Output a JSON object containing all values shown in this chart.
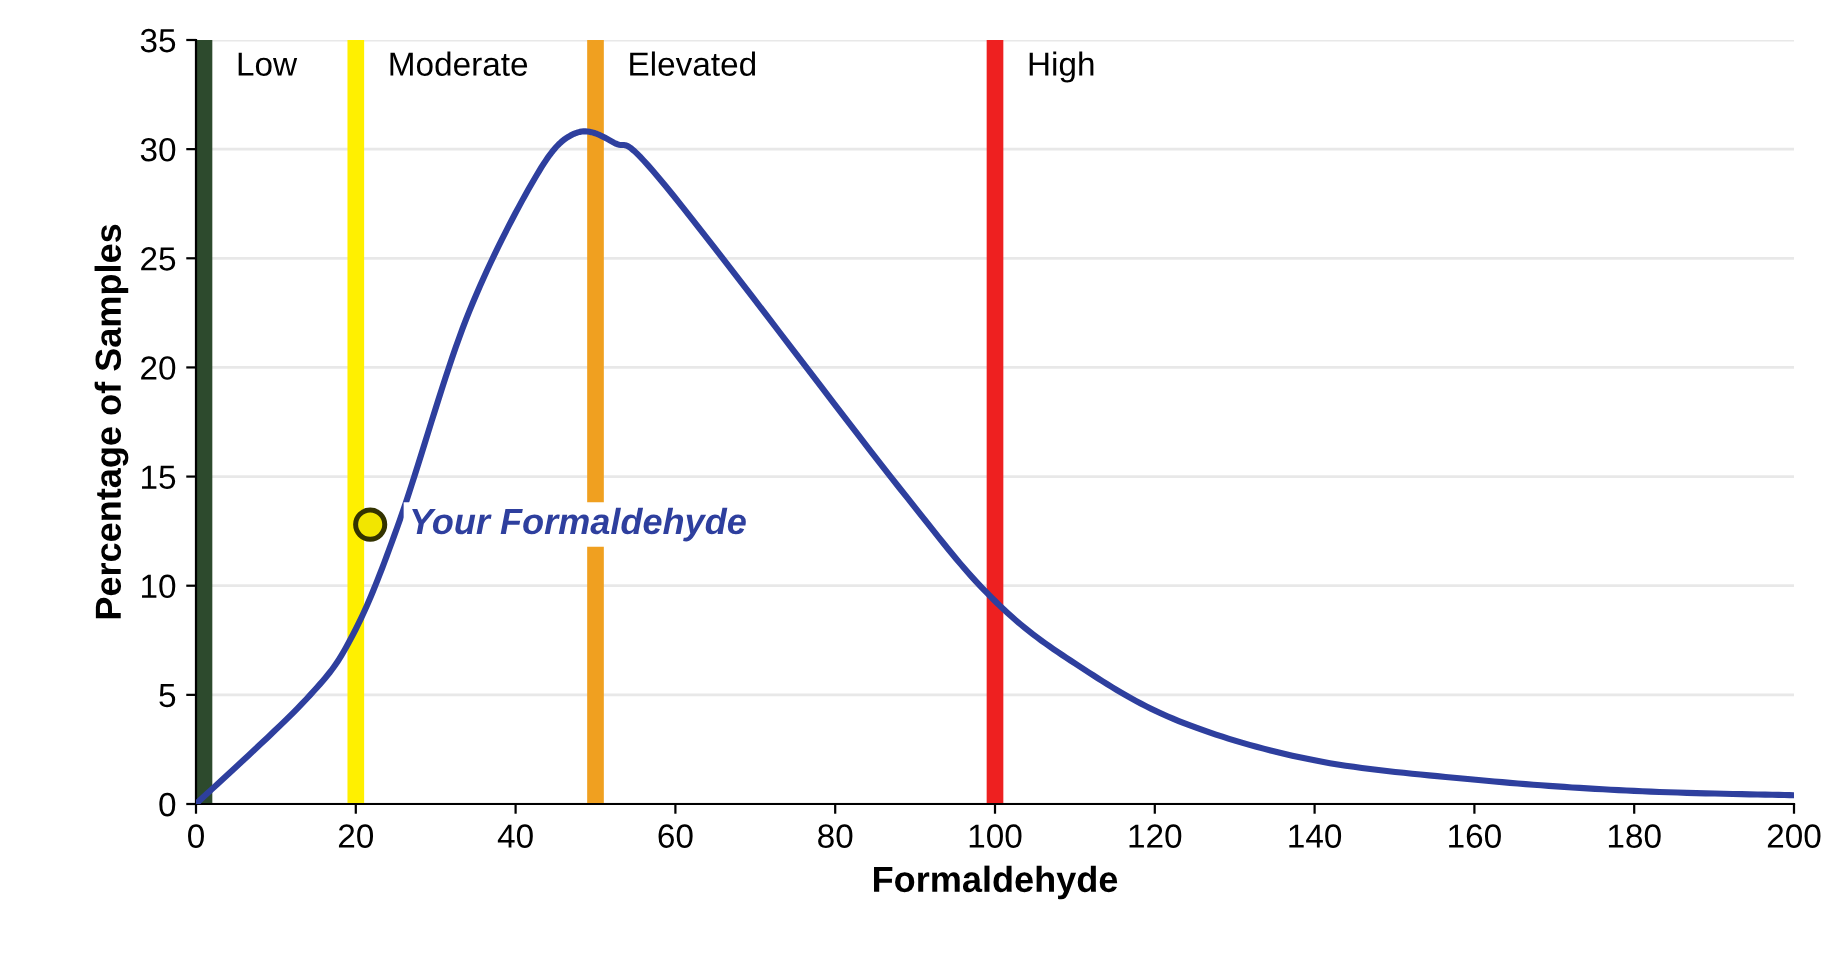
{
  "chart_data": {
    "type": "line",
    "xlabel": "Formaldehyde",
    "ylabel": "Percentage of Samples",
    "xlim": [
      0,
      200
    ],
    "ylim": [
      0,
      35
    ],
    "xticks": [
      0,
      20,
      40,
      60,
      80,
      100,
      120,
      140,
      160,
      180,
      200
    ],
    "yticks": [
      0,
      5,
      10,
      15,
      20,
      25,
      30,
      35
    ],
    "grid": "y",
    "series": [
      {
        "color": "#2e3f9e",
        "x": [
          0,
          13.8,
          19.7,
          25.5,
          33.8,
          42.3,
          47.3,
          52.3,
          58.8,
          88,
          100,
          110.6,
          123,
          140,
          160.5,
          180,
          200
        ],
        "values": [
          0,
          4.8,
          7.8,
          13,
          22.2,
          28.6,
          30.7,
          30.3,
          28.3,
          14.5,
          9.3,
          6.3,
          3.8,
          2,
          1.1,
          0.6,
          0.4
        ]
      },
      {
        "type": "scatter",
        "name": "Your Formaldehyde",
        "color": "#f2e600",
        "marker": "circle",
        "x": [
          21.8
        ],
        "values": [
          12.8
        ]
      }
    ],
    "ref_lines": [
      {
        "axis": "x",
        "value": 1,
        "label": "Low",
        "color": "#2d4a2d"
      },
      {
        "axis": "x",
        "value": 20,
        "label": "Moderate",
        "color": "#fff000"
      },
      {
        "axis": "x",
        "value": 50,
        "label": "Elevated",
        "color": "#f0a020"
      },
      {
        "axis": "x",
        "value": 100,
        "label": "High",
        "color": "#ee2020"
      }
    ]
  }
}
